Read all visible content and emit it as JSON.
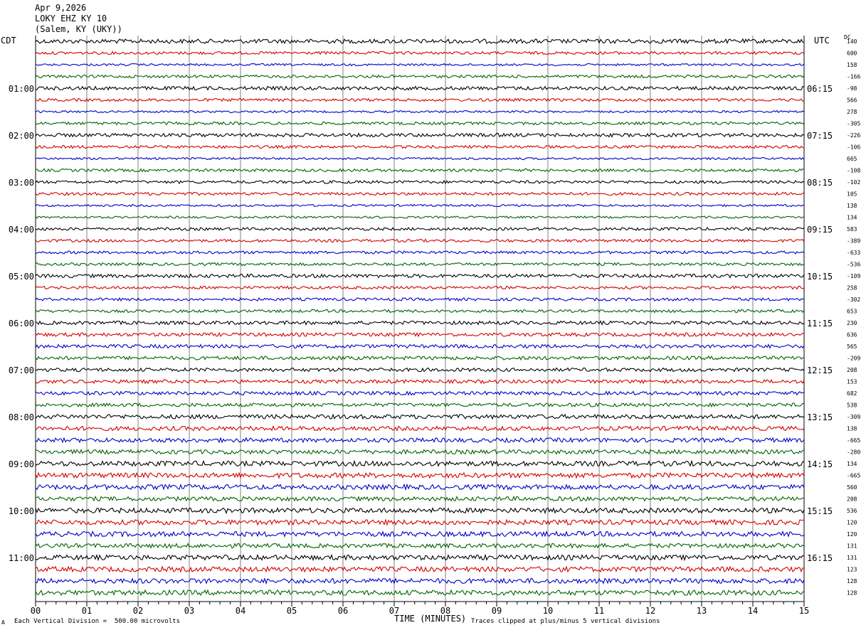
{
  "header": {
    "date": "Apr 9,2026",
    "station": "LOKY EHZ KY 10",
    "location": "(Salem, KY (UKY))"
  },
  "left_axis_label": "CDT",
  "right_axis_label": "UTC",
  "dc_label": "DC",
  "footer": {
    "mark": "A",
    "scale_note": "Each Vertical Division =  500.00 microvolts",
    "xlabel": "TIME (MINUTES)",
    "clip_note": "Traces clipped at plus/minus 5 vertical divisions"
  },
  "chart_data": {
    "type": "line",
    "title": "LOKY EHZ KY 10",
    "xlabel": "TIME (MINUTES)",
    "xlim": [
      0,
      15
    ],
    "x_ticks": [
      "00",
      "01",
      "02",
      "03",
      "04",
      "05",
      "06",
      "07",
      "08",
      "09",
      "10",
      "11",
      "12",
      "13",
      "14",
      "15"
    ],
    "left_hour_labels": [
      "01:00",
      "02:00",
      "03:00",
      "04:00",
      "05:00",
      "06:00",
      "07:00",
      "08:00",
      "09:00",
      "10:00",
      "11:00"
    ],
    "right_hour_labels": [
      "06:15",
      "07:15",
      "08:15",
      "09:15",
      "10:15",
      "11:15",
      "12:15",
      "13:15",
      "14:15",
      "15:15",
      "16:15"
    ],
    "trace_colors": [
      "#000000",
      "#d40000",
      "#0000c8",
      "#006400"
    ],
    "dc_offsets": [
      "140",
      "600",
      "158",
      "-166",
      "-98",
      "566",
      "278",
      "-305",
      "-226",
      "-106",
      "665",
      "-108",
      "-102",
      "105",
      "138",
      "134",
      "583",
      "-389",
      "-633",
      "-536",
      "-109",
      "258",
      "-302",
      "653",
      "230",
      "636",
      "565",
      "-209",
      "208",
      "153",
      "682",
      "538",
      "-309",
      "138",
      "-665",
      "-280",
      "134",
      "-665",
      "560",
      "208",
      "536",
      "120",
      "120",
      "131",
      "131",
      "123",
      "128",
      "128"
    ],
    "amplitude_by_trace": [
      3,
      2,
      1.5,
      2,
      2.5,
      2,
      1.5,
      2,
      2.5,
      2,
      1.5,
      2,
      2,
      2,
      1.5,
      1.5,
      2,
      2,
      2,
      2,
      2.5,
      2,
      2,
      2,
      2.5,
      2.5,
      2.5,
      2.5,
      2.5,
      2.5,
      2.5,
      2.5,
      3,
      3,
      3,
      3,
      3.5,
      3.5,
      3.5,
      3,
      3.5,
      3.5,
      3.5,
      3,
      3.5,
      3.5,
      3.5,
      3.5
    ]
  }
}
